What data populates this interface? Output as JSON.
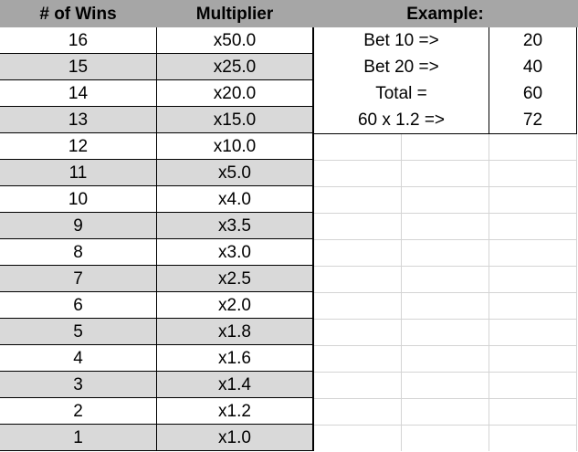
{
  "header": {
    "wins": "# of Wins",
    "multiplier": "Multiplier",
    "example": "Example:"
  },
  "rows": [
    {
      "wins": "16",
      "multiplier": "x50.0"
    },
    {
      "wins": "15",
      "multiplier": "x25.0"
    },
    {
      "wins": "14",
      "multiplier": "x20.0"
    },
    {
      "wins": "13",
      "multiplier": "x15.0"
    },
    {
      "wins": "12",
      "multiplier": "x10.0"
    },
    {
      "wins": "11",
      "multiplier": "x5.0"
    },
    {
      "wins": "10",
      "multiplier": "x4.0"
    },
    {
      "wins": "9",
      "multiplier": "x3.5"
    },
    {
      "wins": "8",
      "multiplier": "x3.0"
    },
    {
      "wins": "7",
      "multiplier": "x2.5"
    },
    {
      "wins": "6",
      "multiplier": "x2.0"
    },
    {
      "wins": "5",
      "multiplier": "x1.8"
    },
    {
      "wins": "4",
      "multiplier": "x1.6"
    },
    {
      "wins": "3",
      "multiplier": "x1.4"
    },
    {
      "wins": "2",
      "multiplier": "x1.2"
    },
    {
      "wins": "1",
      "multiplier": "x1.0"
    }
  ],
  "example": [
    {
      "label": "Bet 10 =>",
      "value": "20"
    },
    {
      "label": "Bet 20 =>",
      "value": "40"
    },
    {
      "label": "Total =",
      "value": "60"
    },
    {
      "label": "60 x 1.2 =>",
      "value": "72"
    }
  ],
  "colors": {
    "header_bg": "#a6a6a6",
    "shaded_row": "#d9d9d9",
    "gridline": "#d4d4d4"
  }
}
